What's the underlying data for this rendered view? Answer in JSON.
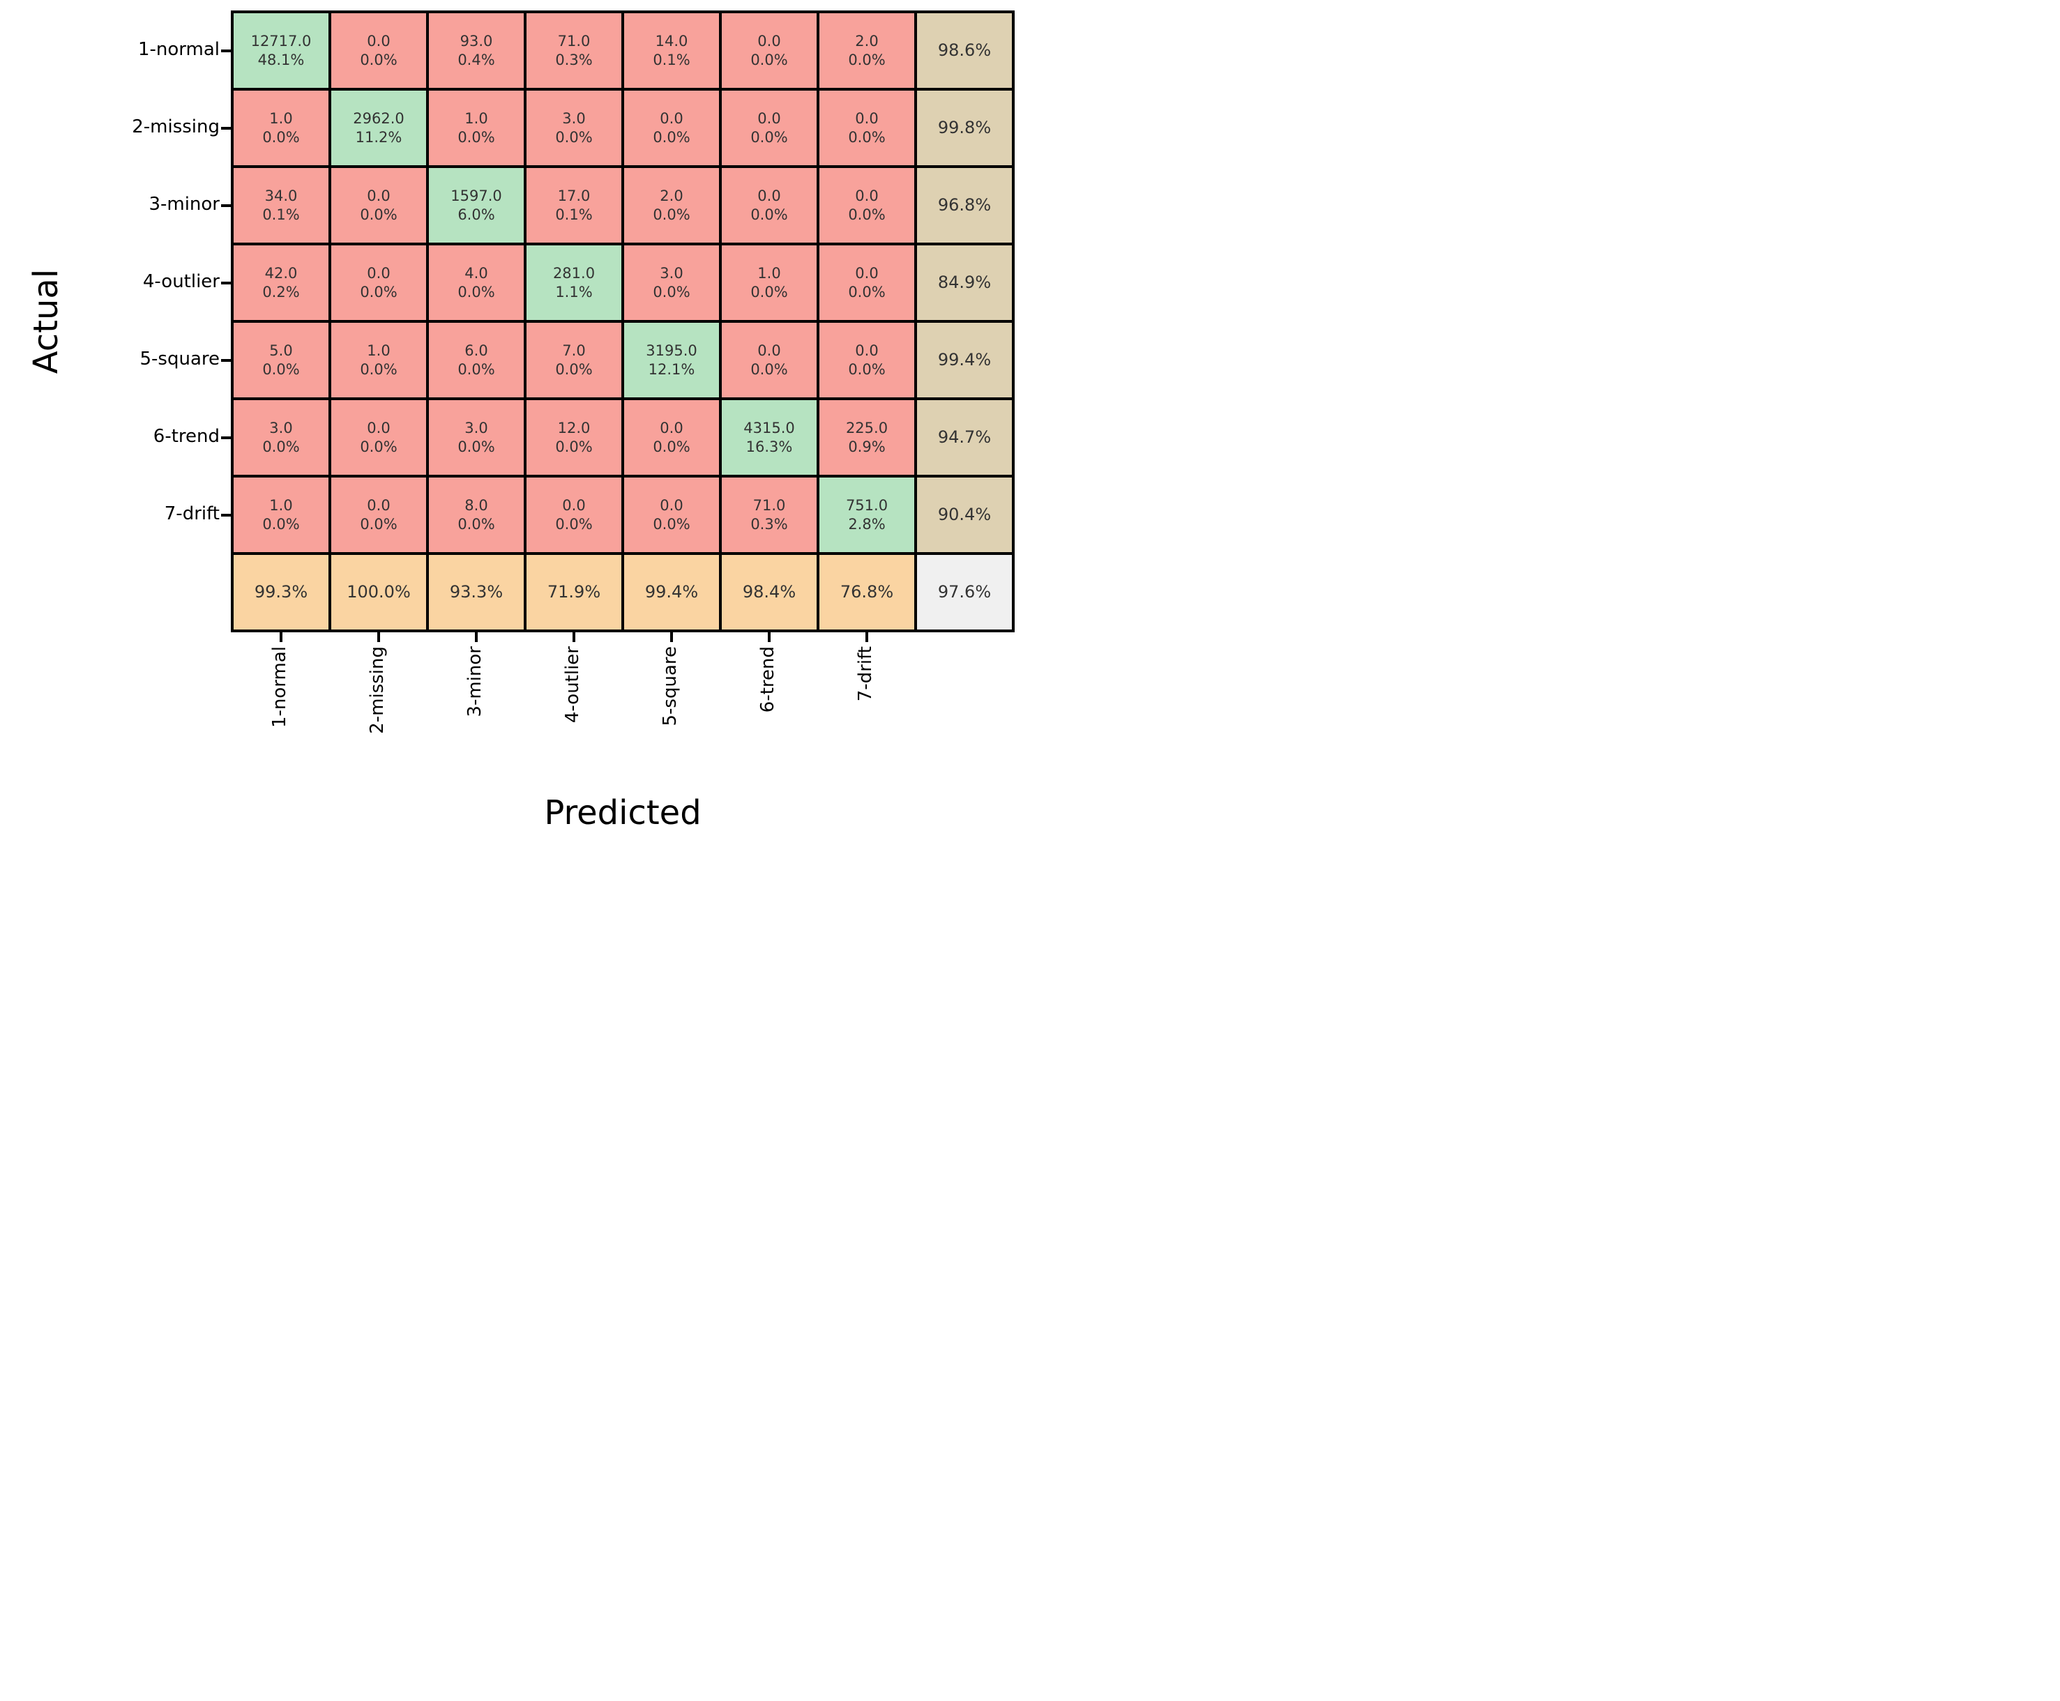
{
  "chart_data": {
    "type": "heatmap",
    "subtype": "confusion_matrix",
    "xlabel": "Predicted",
    "ylabel": "Actual",
    "classes": [
      "1-normal",
      "2-missing",
      "3-minor",
      "4-outlier",
      "5-square",
      "6-trend",
      "7-drift"
    ],
    "counts": [
      [
        "12717.0",
        "0.0",
        "93.0",
        "71.0",
        "14.0",
        "0.0",
        "2.0"
      ],
      [
        "1.0",
        "2962.0",
        "1.0",
        "3.0",
        "0.0",
        "0.0",
        "0.0"
      ],
      [
        "34.0",
        "0.0",
        "1597.0",
        "17.0",
        "2.0",
        "0.0",
        "0.0"
      ],
      [
        "42.0",
        "0.0",
        "4.0",
        "281.0",
        "3.0",
        "1.0",
        "0.0"
      ],
      [
        "5.0",
        "1.0",
        "6.0",
        "7.0",
        "3195.0",
        "0.0",
        "0.0"
      ],
      [
        "3.0",
        "0.0",
        "3.0",
        "12.0",
        "0.0",
        "4315.0",
        "225.0"
      ],
      [
        "1.0",
        "0.0",
        "8.0",
        "0.0",
        "0.0",
        "71.0",
        "751.0"
      ]
    ],
    "percents": [
      [
        "48.1%",
        "0.0%",
        "0.4%",
        "0.3%",
        "0.1%",
        "0.0%",
        "0.0%"
      ],
      [
        "0.0%",
        "11.2%",
        "0.0%",
        "0.0%",
        "0.0%",
        "0.0%",
        "0.0%"
      ],
      [
        "0.1%",
        "0.0%",
        "6.0%",
        "0.1%",
        "0.0%",
        "0.0%",
        "0.0%"
      ],
      [
        "0.2%",
        "0.0%",
        "0.0%",
        "1.1%",
        "0.0%",
        "0.0%",
        "0.0%"
      ],
      [
        "0.0%",
        "0.0%",
        "0.0%",
        "0.0%",
        "12.1%",
        "0.0%",
        "0.0%"
      ],
      [
        "0.0%",
        "0.0%",
        "0.0%",
        "0.0%",
        "0.0%",
        "16.3%",
        "0.9%"
      ],
      [
        "0.0%",
        "0.0%",
        "0.0%",
        "0.0%",
        "0.0%",
        "0.3%",
        "2.8%"
      ]
    ],
    "row_accuracy": [
      "98.6%",
      "99.8%",
      "96.8%",
      "84.9%",
      "99.4%",
      "94.7%",
      "90.4%"
    ],
    "col_accuracy": [
      "99.3%",
      "100.0%",
      "93.3%",
      "71.9%",
      "99.4%",
      "98.4%",
      "76.8%"
    ],
    "overall_accuracy": "97.6%",
    "colors": {
      "diagonal": "#b6e3c1",
      "off_diagonal": "#f8a29b",
      "row_summary": "#ded1b2",
      "col_summary": "#fad4a2",
      "overall": "#f0f0f0",
      "grid_line": "#000000",
      "cell_text": "#333333"
    },
    "layout": {
      "legend": "none",
      "grid": "on",
      "x_tick_rotation_deg": 90
    }
  }
}
